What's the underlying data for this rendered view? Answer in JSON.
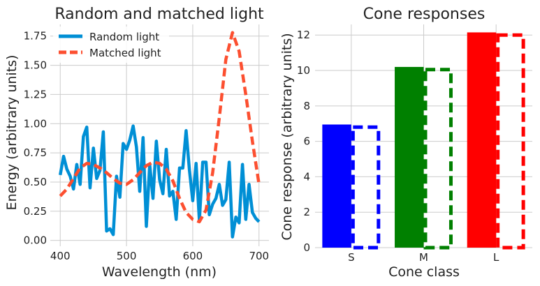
{
  "chart_data": [
    {
      "type": "line",
      "title": "Random and matched light",
      "xlabel": "Wavelength (nm)",
      "ylabel": "Energy (arbitrary units)",
      "xlim": [
        385,
        715
      ],
      "ylim": [
        -0.05,
        1.85
      ],
      "xticks": [
        400,
        500,
        600,
        700
      ],
      "yticks": [
        0.0,
        0.25,
        0.5,
        0.75,
        1.0,
        1.25,
        1.5,
        1.75
      ],
      "xtick_labels": [
        "400",
        "500",
        "600",
        "700"
      ],
      "ytick_labels": [
        "0.00",
        "0.25",
        "0.50",
        "0.75",
        "1.00",
        "1.25",
        "1.50",
        "1.75"
      ],
      "grid": true,
      "legend_position": "top-left",
      "series": [
        {
          "name": "Random light",
          "style": "solid",
          "color": "#008fd5",
          "x": [
            400,
            405,
            410,
            415,
            420,
            425,
            430,
            435,
            440,
            445,
            450,
            455,
            460,
            465,
            470,
            475,
            480,
            485,
            490,
            495,
            500,
            505,
            510,
            515,
            520,
            525,
            530,
            535,
            540,
            545,
            550,
            555,
            560,
            565,
            570,
            575,
            580,
            585,
            590,
            595,
            600,
            605,
            610,
            615,
            620,
            625,
            630,
            635,
            640,
            645,
            650,
            655,
            660,
            665,
            670,
            675,
            680,
            685,
            690,
            695,
            700
          ],
          "y": [
            0.56,
            0.72,
            0.61,
            0.55,
            0.44,
            0.65,
            0.48,
            0.89,
            0.97,
            0.45,
            0.79,
            0.53,
            0.6,
            0.93,
            0.08,
            0.1,
            0.05,
            0.55,
            0.37,
            0.83,
            0.78,
            0.86,
            0.98,
            0.8,
            0.42,
            0.88,
            0.12,
            0.65,
            0.36,
            0.85,
            0.52,
            0.4,
            0.78,
            0.38,
            0.42,
            0.18,
            0.62,
            0.62,
            0.94,
            0.6,
            0.34,
            0.66,
            0.17,
            0.67,
            0.67,
            0.22,
            0.31,
            0.36,
            0.48,
            0.3,
            0.35,
            0.67,
            0.03,
            0.2,
            0.15,
            0.65,
            0.18,
            0.48,
            0.24,
            0.19,
            0.16
          ]
        },
        {
          "name": "Matched light",
          "style": "dashed",
          "color": "#fc4f30",
          "x": [
            400,
            410,
            420,
            430,
            440,
            450,
            460,
            470,
            480,
            490,
            500,
            510,
            520,
            530,
            540,
            550,
            560,
            570,
            580,
            590,
            600,
            610,
            620,
            630,
            640,
            650,
            660,
            670,
            680,
            690,
            700
          ],
          "y": [
            0.38,
            0.44,
            0.53,
            0.62,
            0.66,
            0.65,
            0.62,
            0.58,
            0.53,
            0.49,
            0.48,
            0.52,
            0.58,
            0.64,
            0.67,
            0.66,
            0.61,
            0.51,
            0.36,
            0.24,
            0.18,
            0.16,
            0.26,
            0.58,
            1.05,
            1.55,
            1.78,
            1.62,
            1.25,
            0.85,
            0.48
          ]
        }
      ]
    },
    {
      "type": "bar",
      "title": "Cone responses",
      "xlabel": "Cone class",
      "ylabel": "Cone response (arbitrary units)",
      "categories": [
        "S",
        "M",
        "L"
      ],
      "ylim": [
        0,
        12.6
      ],
      "yticks": [
        0,
        2,
        4,
        6,
        8,
        10,
        12
      ],
      "ytick_labels": [
        "0",
        "2",
        "4",
        "6",
        "8",
        "10",
        "12"
      ],
      "grid": true,
      "colors": [
        "#0000ff",
        "#008000",
        "#ff0000"
      ],
      "series": [
        {
          "style": "solid",
          "values": [
            6.95,
            10.2,
            12.15
          ]
        },
        {
          "style": "dashed-outline",
          "values": [
            6.9,
            10.15,
            12.1
          ]
        }
      ]
    }
  ]
}
